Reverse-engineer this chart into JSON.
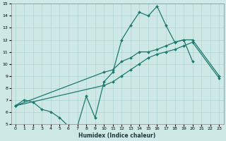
{
  "xlabel": "Humidex (Indice chaleur)",
  "xlim": [
    -0.5,
    23.5
  ],
  "ylim": [
    5,
    15
  ],
  "xticks": [
    0,
    1,
    2,
    3,
    4,
    5,
    6,
    7,
    8,
    9,
    10,
    11,
    12,
    13,
    14,
    15,
    16,
    17,
    18,
    19,
    20,
    21,
    22,
    23
  ],
  "yticks": [
    5,
    6,
    7,
    8,
    9,
    10,
    11,
    12,
    13,
    14,
    15
  ],
  "background_color": "#cde8e5",
  "grid_color": "#aed4d0",
  "line_color": "#1e7a6e",
  "line1_x": [
    0,
    1,
    2,
    3,
    4,
    5,
    6,
    7,
    8,
    9,
    10,
    11,
    12,
    13,
    14,
    15,
    16,
    17,
    18,
    19,
    20
  ],
  "line1_y": [
    6.5,
    7.0,
    6.8,
    6.2,
    6.0,
    5.5,
    4.8,
    4.8,
    7.3,
    5.5,
    8.5,
    9.3,
    12.0,
    13.2,
    14.3,
    14.0,
    14.8,
    13.2,
    11.8,
    12.0,
    10.2
  ],
  "line2_x": [
    0,
    23
  ],
  "line2_y": [
    6.5,
    9.0
  ],
  "line3_x": [
    0,
    23
  ],
  "line3_y": [
    6.5,
    8.8
  ],
  "marker_x2": [
    0,
    10,
    11,
    12,
    13,
    14,
    15,
    16,
    17,
    18,
    19,
    20,
    23
  ],
  "marker_y2": [
    6.5,
    9.3,
    9.5,
    10.2,
    10.5,
    11.0,
    11.0,
    11.2,
    11.5,
    11.8,
    12.0,
    12.0,
    9.0
  ],
  "marker_x3": [
    0,
    10,
    11,
    12,
    13,
    14,
    15,
    16,
    17,
    18,
    19,
    20,
    23
  ],
  "marker_y3": [
    6.5,
    8.2,
    8.5,
    9.0,
    9.5,
    10.0,
    10.5,
    10.8,
    11.0,
    11.2,
    11.5,
    11.8,
    8.8
  ]
}
